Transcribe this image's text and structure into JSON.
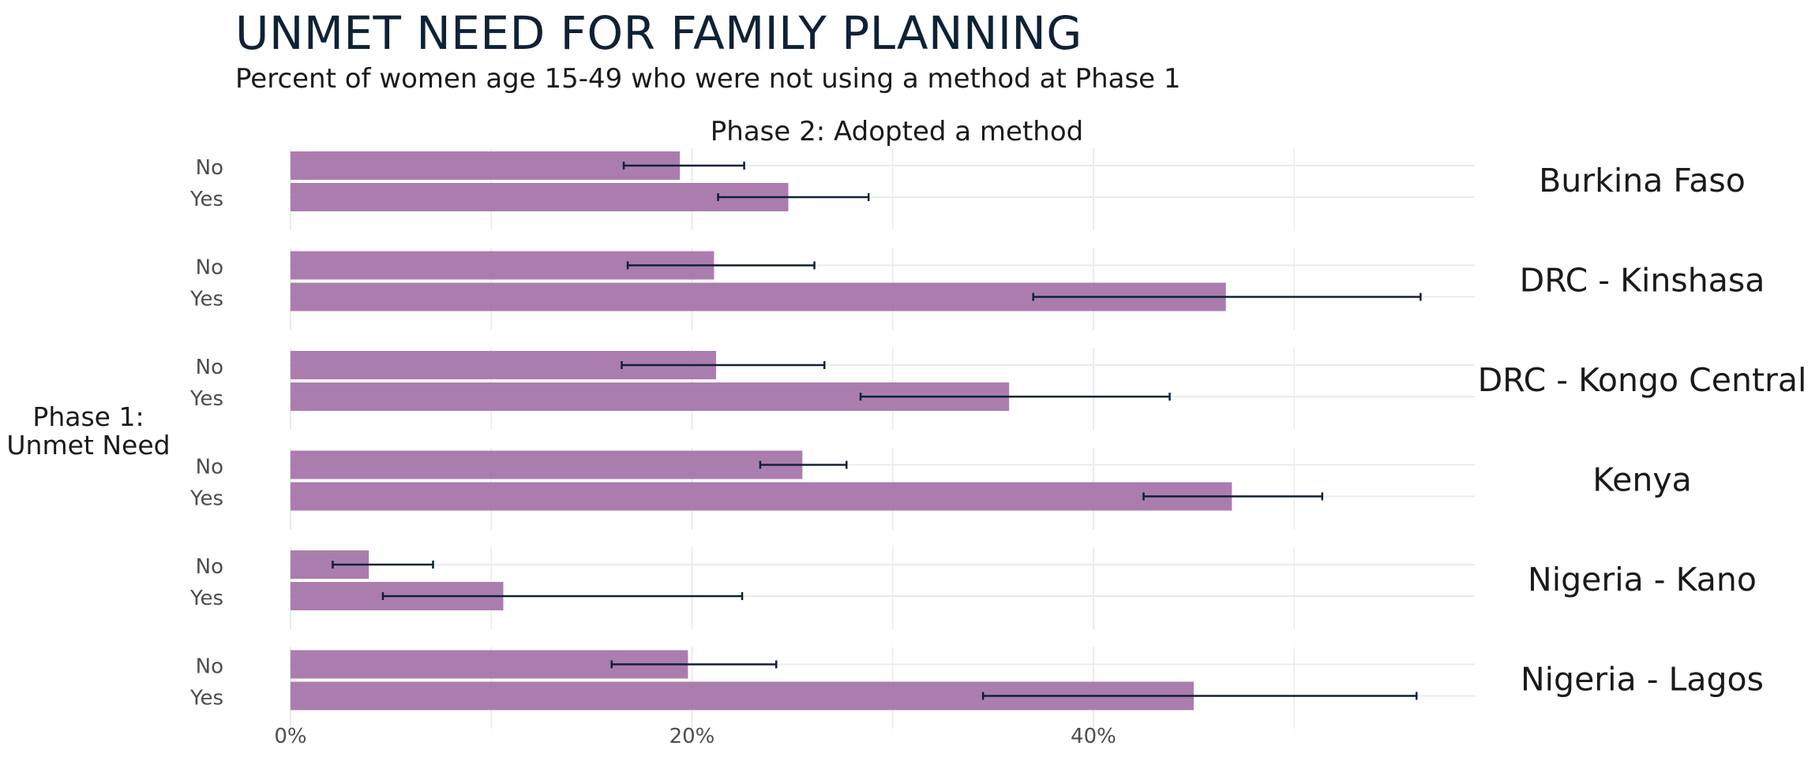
{
  "chart_data": {
    "type": "bar",
    "orientation": "horizontal",
    "title": "UNMET NEED FOR FAMILY PLANNING",
    "subtitle": "Percent of women age 15-49 who were not using a method at Phase 1",
    "facet_title": "Phase 2: Adopted a method",
    "ylabel": "Phase 1:\nUnmet Need",
    "xlim": [
      0,
      59
    ],
    "x_ticks": [
      0,
      20,
      40
    ],
    "x_tick_labels": [
      "0%",
      "20%",
      "40%"
    ],
    "grid": true,
    "bar_color": "#a676ab",
    "errorbar_color": "#0e2236",
    "categories": [
      "No",
      "Yes"
    ],
    "panels": [
      {
        "name": "Burkina Faso",
        "bars": [
          {
            "category": "No",
            "value": 19.4,
            "ci": [
              16.6,
              22.6
            ]
          },
          {
            "category": "Yes",
            "value": 24.8,
            "ci": [
              21.3,
              28.8
            ]
          }
        ]
      },
      {
        "name": "DRC - Kinshasa",
        "bars": [
          {
            "category": "No",
            "value": 21.1,
            "ci": [
              16.8,
              26.1
            ]
          },
          {
            "category": "Yes",
            "value": 46.6,
            "ci": [
              37.0,
              56.3
            ]
          }
        ]
      },
      {
        "name": "DRC - Kongo Central",
        "bars": [
          {
            "category": "No",
            "value": 21.2,
            "ci": [
              16.5,
              26.6
            ]
          },
          {
            "category": "Yes",
            "value": 35.8,
            "ci": [
              28.4,
              43.8
            ]
          }
        ]
      },
      {
        "name": "Kenya",
        "bars": [
          {
            "category": "No",
            "value": 25.5,
            "ci": [
              23.4,
              27.7
            ]
          },
          {
            "category": "Yes",
            "value": 46.9,
            "ci": [
              42.5,
              51.4
            ]
          }
        ]
      },
      {
        "name": "Nigeria - Kano",
        "bars": [
          {
            "category": "No",
            "value": 3.9,
            "ci": [
              2.1,
              7.1
            ]
          },
          {
            "category": "Yes",
            "value": 10.6,
            "ci": [
              4.6,
              22.5
            ]
          }
        ]
      },
      {
        "name": "Nigeria - Lagos",
        "bars": [
          {
            "category": "No",
            "value": 19.8,
            "ci": [
              16.0,
              24.2
            ]
          },
          {
            "category": "Yes",
            "value": 45.0,
            "ci": [
              34.5,
              56.1
            ]
          }
        ]
      }
    ]
  }
}
